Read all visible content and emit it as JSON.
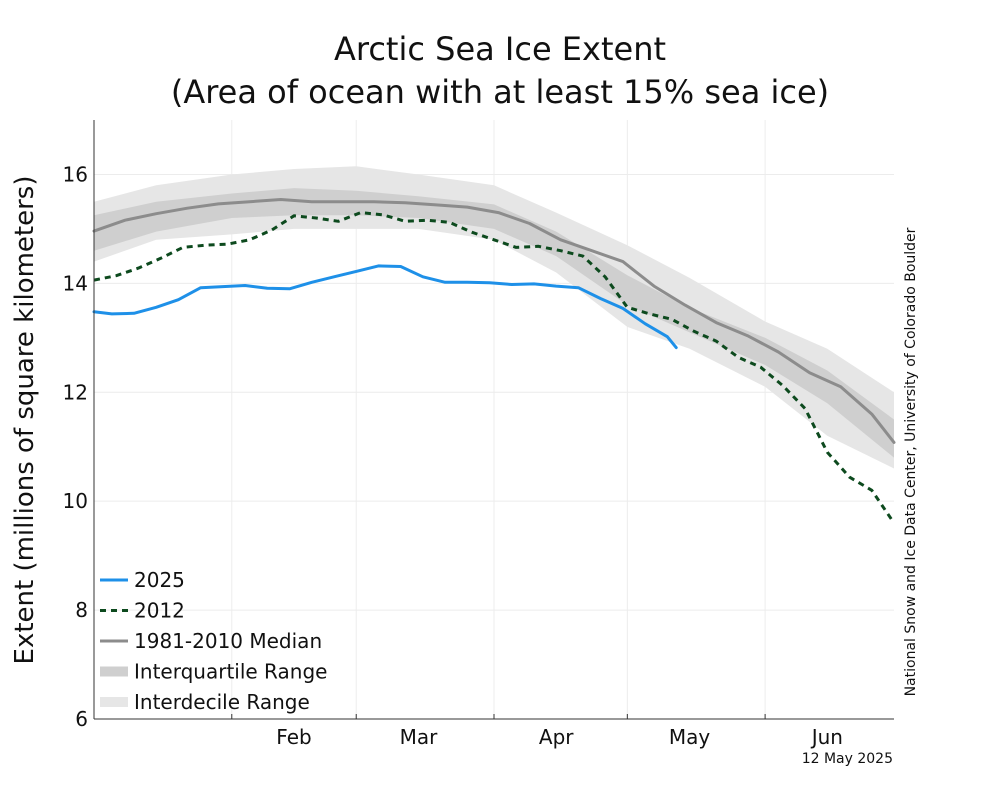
{
  "chart_data": {
    "type": "line",
    "title_line1": "Arctic Sea Ice Extent",
    "title_line2": "(Area of ocean with at least 15% sea ice)",
    "xlabel": "",
    "ylabel": "Extent (millions of square kilometers)",
    "ylim": [
      6,
      17
    ],
    "xlim": [
      "2025-01-01",
      "2025-06-30"
    ],
    "yticks": [
      6,
      8,
      10,
      12,
      14,
      16
    ],
    "xticks": [
      {
        "label": "Feb",
        "date": "2025-02-15"
      },
      {
        "label": "Mar",
        "date": "2025-03-15"
      },
      {
        "label": "Apr",
        "date": "2025-04-15"
      },
      {
        "label": "May",
        "date": "2025-05-15"
      },
      {
        "label": "Jun",
        "date": "2025-06-15"
      }
    ],
    "month_boundaries": [
      "2025-02-01",
      "2025-03-01",
      "2025-04-01",
      "2025-05-01",
      "2025-06-01"
    ],
    "grid": true,
    "legend_position": "bottom-left",
    "credit": "National Snow and Ice Data Center, University of Colorado Boulder",
    "date_stamp": "12 May 2025",
    "colors": {
      "2025": "#1e90e8",
      "2012": "#0d4a1e",
      "median": "#8c8c8c",
      "interquartile": "#cfcfcf",
      "interdecile": "#e6e6e6"
    },
    "legend": [
      {
        "label": "2025",
        "key": "2025"
      },
      {
        "label": "2012",
        "key": "2012"
      },
      {
        "label": "1981-2010 Median",
        "key": "median"
      },
      {
        "label": "Interquartile Range",
        "key": "interquartile"
      },
      {
        "label": "Interdecile Range",
        "key": "interdecile"
      }
    ],
    "series": [
      {
        "name": "2025",
        "points": [
          [
            "2025-01-01",
            13.48
          ],
          [
            "2025-01-05",
            13.44
          ],
          [
            "2025-01-10",
            13.45
          ],
          [
            "2025-01-15",
            13.56
          ],
          [
            "2025-01-20",
            13.7
          ],
          [
            "2025-01-25",
            13.92
          ],
          [
            "2025-01-30",
            13.94
          ],
          [
            "2025-02-04",
            13.96
          ],
          [
            "2025-02-09",
            13.91
          ],
          [
            "2025-02-14",
            13.9
          ],
          [
            "2025-02-19",
            14.02
          ],
          [
            "2025-02-24",
            14.12
          ],
          [
            "2025-03-01",
            14.22
          ],
          [
            "2025-03-06",
            14.32
          ],
          [
            "2025-03-11",
            14.31
          ],
          [
            "2025-03-16",
            14.12
          ],
          [
            "2025-03-21",
            14.02
          ],
          [
            "2025-03-26",
            14.02
          ],
          [
            "2025-03-31",
            14.01
          ],
          [
            "2025-04-05",
            13.98
          ],
          [
            "2025-04-10",
            13.99
          ],
          [
            "2025-04-15",
            13.95
          ],
          [
            "2025-04-20",
            13.92
          ],
          [
            "2025-04-25",
            13.72
          ],
          [
            "2025-04-30",
            13.54
          ],
          [
            "2025-05-05",
            13.26
          ],
          [
            "2025-05-10",
            13.02
          ],
          [
            "2025-05-12",
            12.82
          ]
        ]
      },
      {
        "name": "2012",
        "points": [
          [
            "2025-01-01",
            14.06
          ],
          [
            "2025-01-06",
            14.14
          ],
          [
            "2025-01-11",
            14.28
          ],
          [
            "2025-01-16",
            14.46
          ],
          [
            "2025-01-21",
            14.66
          ],
          [
            "2025-01-26",
            14.7
          ],
          [
            "2025-01-31",
            14.72
          ],
          [
            "2025-02-05",
            14.8
          ],
          [
            "2025-02-10",
            14.98
          ],
          [
            "2025-02-15",
            15.24
          ],
          [
            "2025-02-20",
            15.2
          ],
          [
            "2025-02-25",
            15.14
          ],
          [
            "2025-03-02",
            15.3
          ],
          [
            "2025-03-07",
            15.26
          ],
          [
            "2025-03-12",
            15.14
          ],
          [
            "2025-03-17",
            15.16
          ],
          [
            "2025-03-22",
            15.12
          ],
          [
            "2025-03-27",
            14.94
          ],
          [
            "2025-04-01",
            14.8
          ],
          [
            "2025-04-06",
            14.66
          ],
          [
            "2025-04-11",
            14.68
          ],
          [
            "2025-04-16",
            14.6
          ],
          [
            "2025-04-21",
            14.5
          ],
          [
            "2025-04-26",
            14.12
          ],
          [
            "2025-05-01",
            13.56
          ],
          [
            "2025-05-06",
            13.44
          ],
          [
            "2025-05-11",
            13.34
          ],
          [
            "2025-05-16",
            13.12
          ],
          [
            "2025-05-21",
            12.94
          ],
          [
            "2025-05-26",
            12.64
          ],
          [
            "2025-05-31",
            12.46
          ],
          [
            "2025-06-05",
            12.12
          ],
          [
            "2025-06-10",
            11.7
          ],
          [
            "2025-06-15",
            10.9
          ],
          [
            "2025-06-20",
            10.44
          ],
          [
            "2025-06-25",
            10.2
          ],
          [
            "2025-06-30",
            9.6
          ]
        ]
      },
      {
        "name": "1981-2010 Median",
        "points": [
          [
            "2025-01-01",
            14.96
          ],
          [
            "2025-01-08",
            15.16
          ],
          [
            "2025-01-15",
            15.28
          ],
          [
            "2025-01-22",
            15.38
          ],
          [
            "2025-01-29",
            15.46
          ],
          [
            "2025-02-05",
            15.5
          ],
          [
            "2025-02-12",
            15.54
          ],
          [
            "2025-02-19",
            15.5
          ],
          [
            "2025-02-26",
            15.5
          ],
          [
            "2025-03-05",
            15.5
          ],
          [
            "2025-03-12",
            15.48
          ],
          [
            "2025-03-19",
            15.44
          ],
          [
            "2025-03-26",
            15.4
          ],
          [
            "2025-04-02",
            15.3
          ],
          [
            "2025-04-09",
            15.1
          ],
          [
            "2025-04-16",
            14.8
          ],
          [
            "2025-04-23",
            14.6
          ],
          [
            "2025-04-30",
            14.4
          ],
          [
            "2025-05-07",
            13.95
          ],
          [
            "2025-05-14",
            13.6
          ],
          [
            "2025-05-21",
            13.28
          ],
          [
            "2025-05-28",
            13.04
          ],
          [
            "2025-06-04",
            12.74
          ],
          [
            "2025-06-11",
            12.36
          ],
          [
            "2025-06-18",
            12.1
          ],
          [
            "2025-06-25",
            11.6
          ],
          [
            "2025-06-30",
            11.08
          ]
        ]
      }
    ],
    "bands": [
      {
        "name": "Interdecile Range",
        "points": [
          [
            "2025-01-01",
            14.4,
            15.5
          ],
          [
            "2025-01-15",
            14.8,
            15.8
          ],
          [
            "2025-02-01",
            14.9,
            16.0
          ],
          [
            "2025-02-15",
            15.0,
            16.1
          ],
          [
            "2025-03-01",
            15.0,
            16.15
          ],
          [
            "2025-03-15",
            15.0,
            16.0
          ],
          [
            "2025-04-01",
            14.8,
            15.8
          ],
          [
            "2025-04-15",
            14.2,
            15.3
          ],
          [
            "2025-05-01",
            13.2,
            14.7
          ],
          [
            "2025-05-15",
            12.8,
            14.1
          ],
          [
            "2025-06-01",
            12.1,
            13.3
          ],
          [
            "2025-06-15",
            11.2,
            12.8
          ],
          [
            "2025-06-30",
            10.6,
            12.0
          ]
        ]
      },
      {
        "name": "Interquartile Range",
        "points": [
          [
            "2025-01-01",
            14.6,
            15.25
          ],
          [
            "2025-01-15",
            14.95,
            15.5
          ],
          [
            "2025-02-01",
            15.2,
            15.65
          ],
          [
            "2025-02-15",
            15.25,
            15.75
          ],
          [
            "2025-03-01",
            15.25,
            15.7
          ],
          [
            "2025-03-15",
            15.2,
            15.6
          ],
          [
            "2025-04-01",
            15.0,
            15.45
          ],
          [
            "2025-04-15",
            14.5,
            14.95
          ],
          [
            "2025-05-01",
            13.6,
            14.15
          ],
          [
            "2025-05-15",
            13.1,
            13.55
          ],
          [
            "2025-06-01",
            12.5,
            13.0
          ],
          [
            "2025-06-15",
            11.8,
            12.4
          ],
          [
            "2025-06-30",
            10.8,
            11.5
          ]
        ]
      }
    ]
  }
}
